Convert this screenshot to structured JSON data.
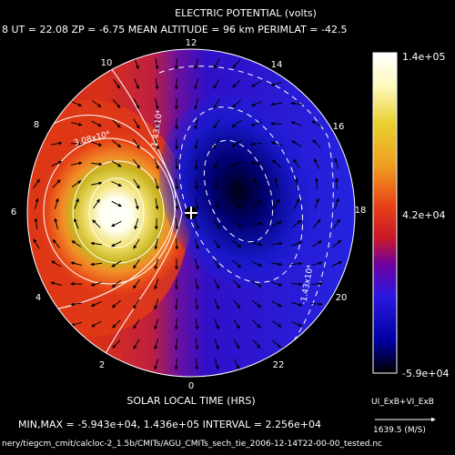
{
  "header": {
    "title": "ELECTRIC POTENTIAL (volts)",
    "info_line": "8   UT = 22.08   ZP =  -6.75   MEAN ALTITUDE =   96 km   PERIMLAT = -42.5"
  },
  "plot": {
    "xlabel": "SOLAR LOCAL TIME (HRS)",
    "hour_labels": {
      "h0": "0",
      "h2": "2",
      "h4": "4",
      "h6": "6",
      "h8": "8",
      "h10": "10",
      "h12": "12",
      "h14": "14",
      "h16": "16",
      "h18": "18",
      "h20": "20",
      "h22": "22"
    },
    "contour_labels": {
      "pos_label": "3.08x10⁴",
      "neg_label_top": "-1.43x10⁴",
      "neg_label_right": "-1.43x10⁴"
    }
  },
  "colorbar": {
    "max_label": "1.4e+05",
    "mid_label": "4.2e+04",
    "min_label": "-5.9e+04",
    "colors": [
      "#ffffff",
      "#f8f060",
      "#e0c818",
      "#f09020",
      "#e83010",
      "#c81020",
      "#6000a0",
      "#2020e0",
      "#0000a0",
      "#000000"
    ]
  },
  "vector_legend": {
    "label": "UI_ExB+VI_ExB",
    "scale_value": "1639.5 (M/S)"
  },
  "footer": {
    "stats": "MIN,MAX = -5.943e+04, 1.436e+05 INTERVAL =  2.256e+04",
    "path": "nery/tiegcm_cmit/calcloc-2_1.5b/CMITs/AGU_CMITs_sech_tie_2006-12-14T22-00-00_tested.nc"
  },
  "chart_data": {
    "type": "heatmap",
    "title": "ELECTRIC POTENTIAL (volts)",
    "xlabel": "SOLAR LOCAL TIME (HRS)",
    "projection": "polar",
    "min": -59430,
    "max": 143600,
    "interval": 22560,
    "colorbar_ticks": [
      -59000,
      42000,
      140000
    ],
    "features": [
      {
        "name": "positive cell",
        "local_time_hrs": 6.5,
        "peak_value": 143600
      },
      {
        "name": "negative cell",
        "local_time_hrs": 17.5,
        "peak_value": -59430
      }
    ],
    "contour_labels": [
      "3.08x10⁴",
      "-1.43x10⁴",
      "-1.43x10⁴"
    ]
  }
}
